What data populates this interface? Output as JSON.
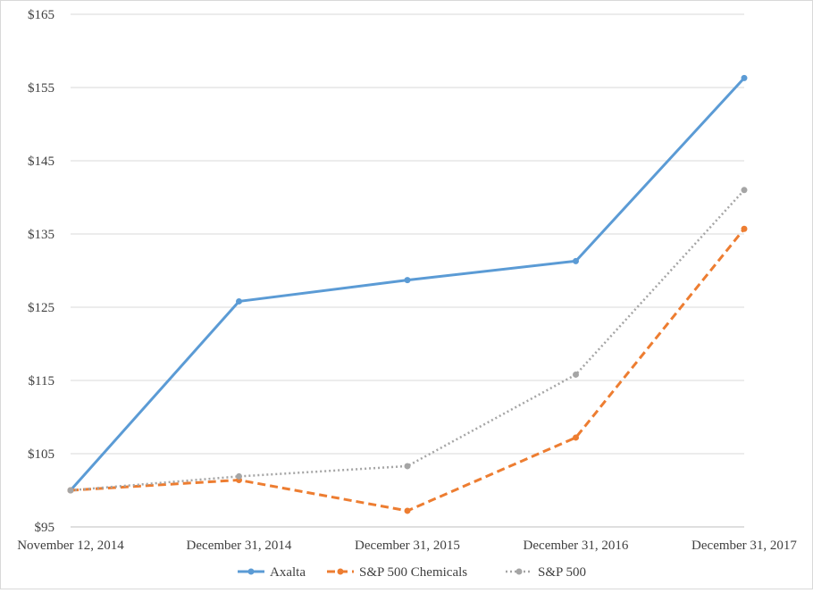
{
  "chart_data": {
    "type": "line",
    "categories": [
      "November 12, 2014",
      "December 31, 2014",
      "December 31, 2015",
      "December 31, 2016",
      "December 31, 2017"
    ],
    "series": [
      {
        "name": "Axalta",
        "values": [
          100,
          125.8,
          128.7,
          131.3,
          156.3
        ],
        "color": "#5b9bd5",
        "style": "solid"
      },
      {
        "name": "S&P 500 Chemicals",
        "values": [
          100,
          101.4,
          97.2,
          107.2,
          135.7
        ],
        "color": "#ed7d31",
        "style": "dashed"
      },
      {
        "name": "S&P 500",
        "values": [
          100,
          101.9,
          103.3,
          115.8,
          141.0
        ],
        "color": "#a5a5a5",
        "style": "dotted"
      }
    ],
    "y_ticks": [
      "$95",
      "$105",
      "$115",
      "$125",
      "$135",
      "$145",
      "$155",
      "$165"
    ],
    "ylim": [
      95,
      165
    ],
    "grid": true,
    "legend_position": "bottom"
  }
}
